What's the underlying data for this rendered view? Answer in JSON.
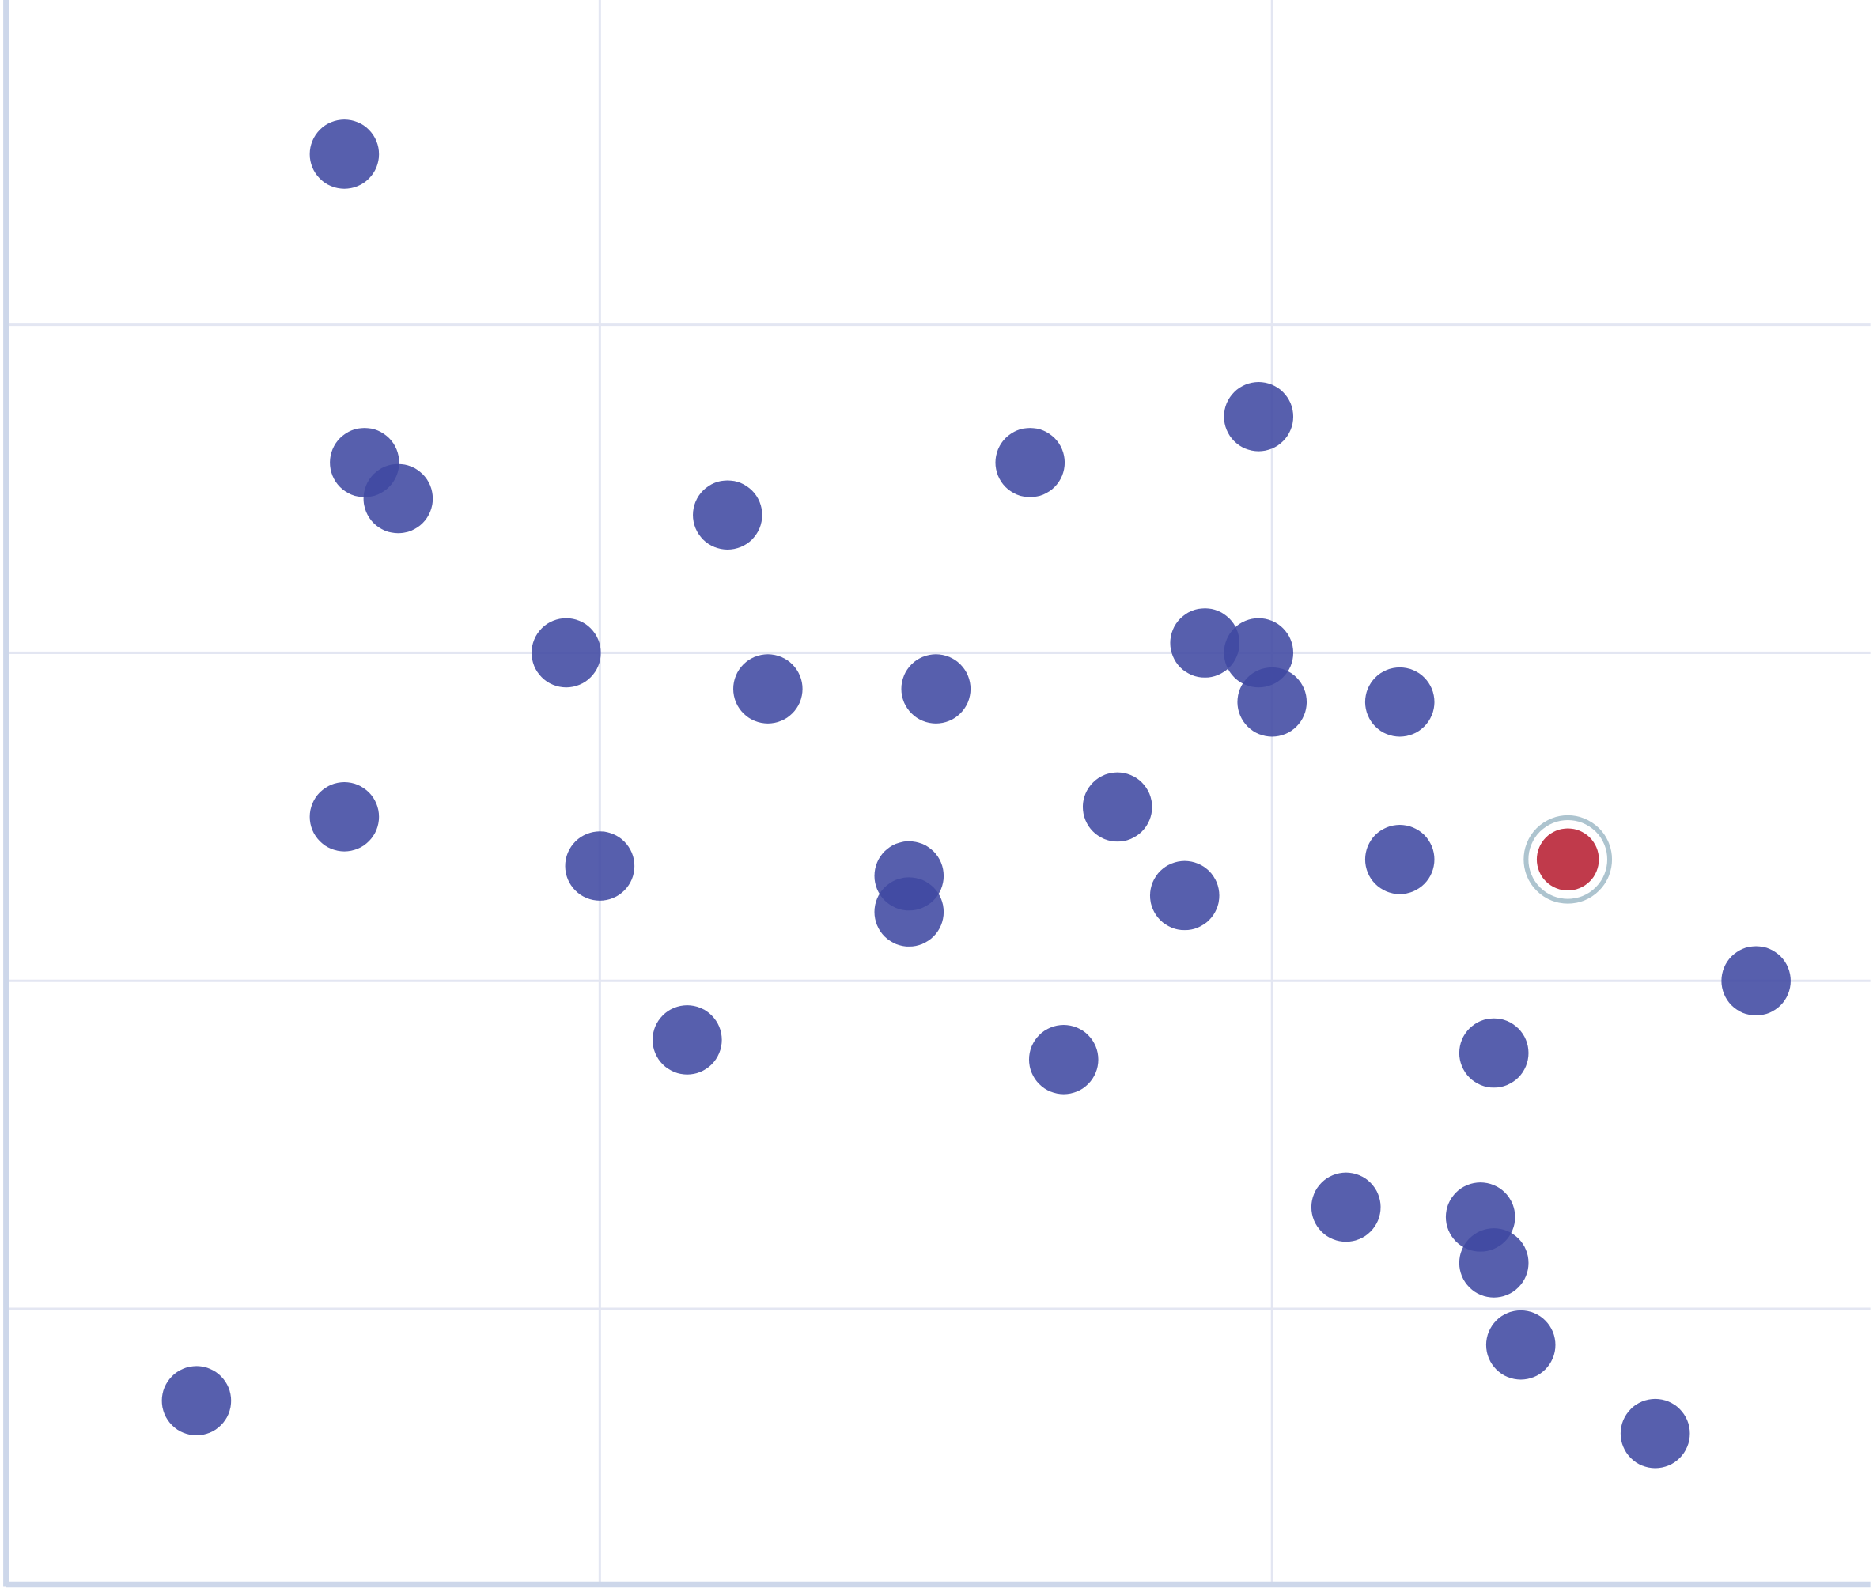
{
  "chart_data": {
    "type": "scatter",
    "title": "",
    "xlabel": "",
    "ylabel": "",
    "xlim": [
      0.117,
      2.89
    ],
    "ylim": [
      0.16,
      4.99
    ],
    "x_gridlines": [
      1,
      2
    ],
    "y_gridlines": [
      1,
      2,
      3,
      4
    ],
    "grid": true,
    "tick_labels_shown": false,
    "legend": "none",
    "colors": {
      "point": "#4049a2",
      "highlight": "#c03a4b",
      "highlight_ring": "#adc4cf",
      "grid": "#e3e6f2",
      "axis": "#cdd7ea"
    },
    "points": [
      {
        "x": 0.62,
        "y": 4.52
      },
      {
        "x": 0.65,
        "y": 3.58
      },
      {
        "x": 0.7,
        "y": 3.47
      },
      {
        "x": 1.19,
        "y": 3.42
      },
      {
        "x": 1.64,
        "y": 3.58
      },
      {
        "x": 1.98,
        "y": 3.72
      },
      {
        "x": 0.95,
        "y": 3.0
      },
      {
        "x": 1.25,
        "y": 2.89
      },
      {
        "x": 1.5,
        "y": 2.89
      },
      {
        "x": 1.9,
        "y": 3.03
      },
      {
        "x": 1.98,
        "y": 3.0
      },
      {
        "x": 2.0,
        "y": 2.85
      },
      {
        "x": 2.19,
        "y": 2.85
      },
      {
        "x": 0.62,
        "y": 2.5
      },
      {
        "x": 1.0,
        "y": 2.35
      },
      {
        "x": 1.46,
        "y": 2.32
      },
      {
        "x": 1.46,
        "y": 2.21
      },
      {
        "x": 1.77,
        "y": 2.53
      },
      {
        "x": 1.87,
        "y": 2.26
      },
      {
        "x": 2.19,
        "y": 2.37
      },
      {
        "x": 2.72,
        "y": 2.0
      },
      {
        "x": 1.13,
        "y": 1.82
      },
      {
        "x": 1.69,
        "y": 1.76
      },
      {
        "x": 2.33,
        "y": 1.78
      },
      {
        "x": 2.11,
        "y": 1.31
      },
      {
        "x": 2.31,
        "y": 1.28
      },
      {
        "x": 2.33,
        "y": 1.14
      },
      {
        "x": 2.37,
        "y": 0.89
      },
      {
        "x": 2.57,
        "y": 0.62
      },
      {
        "x": 0.4,
        "y": 0.72
      }
    ],
    "highlighted_point": {
      "x": 2.44,
      "y": 2.37
    }
  }
}
